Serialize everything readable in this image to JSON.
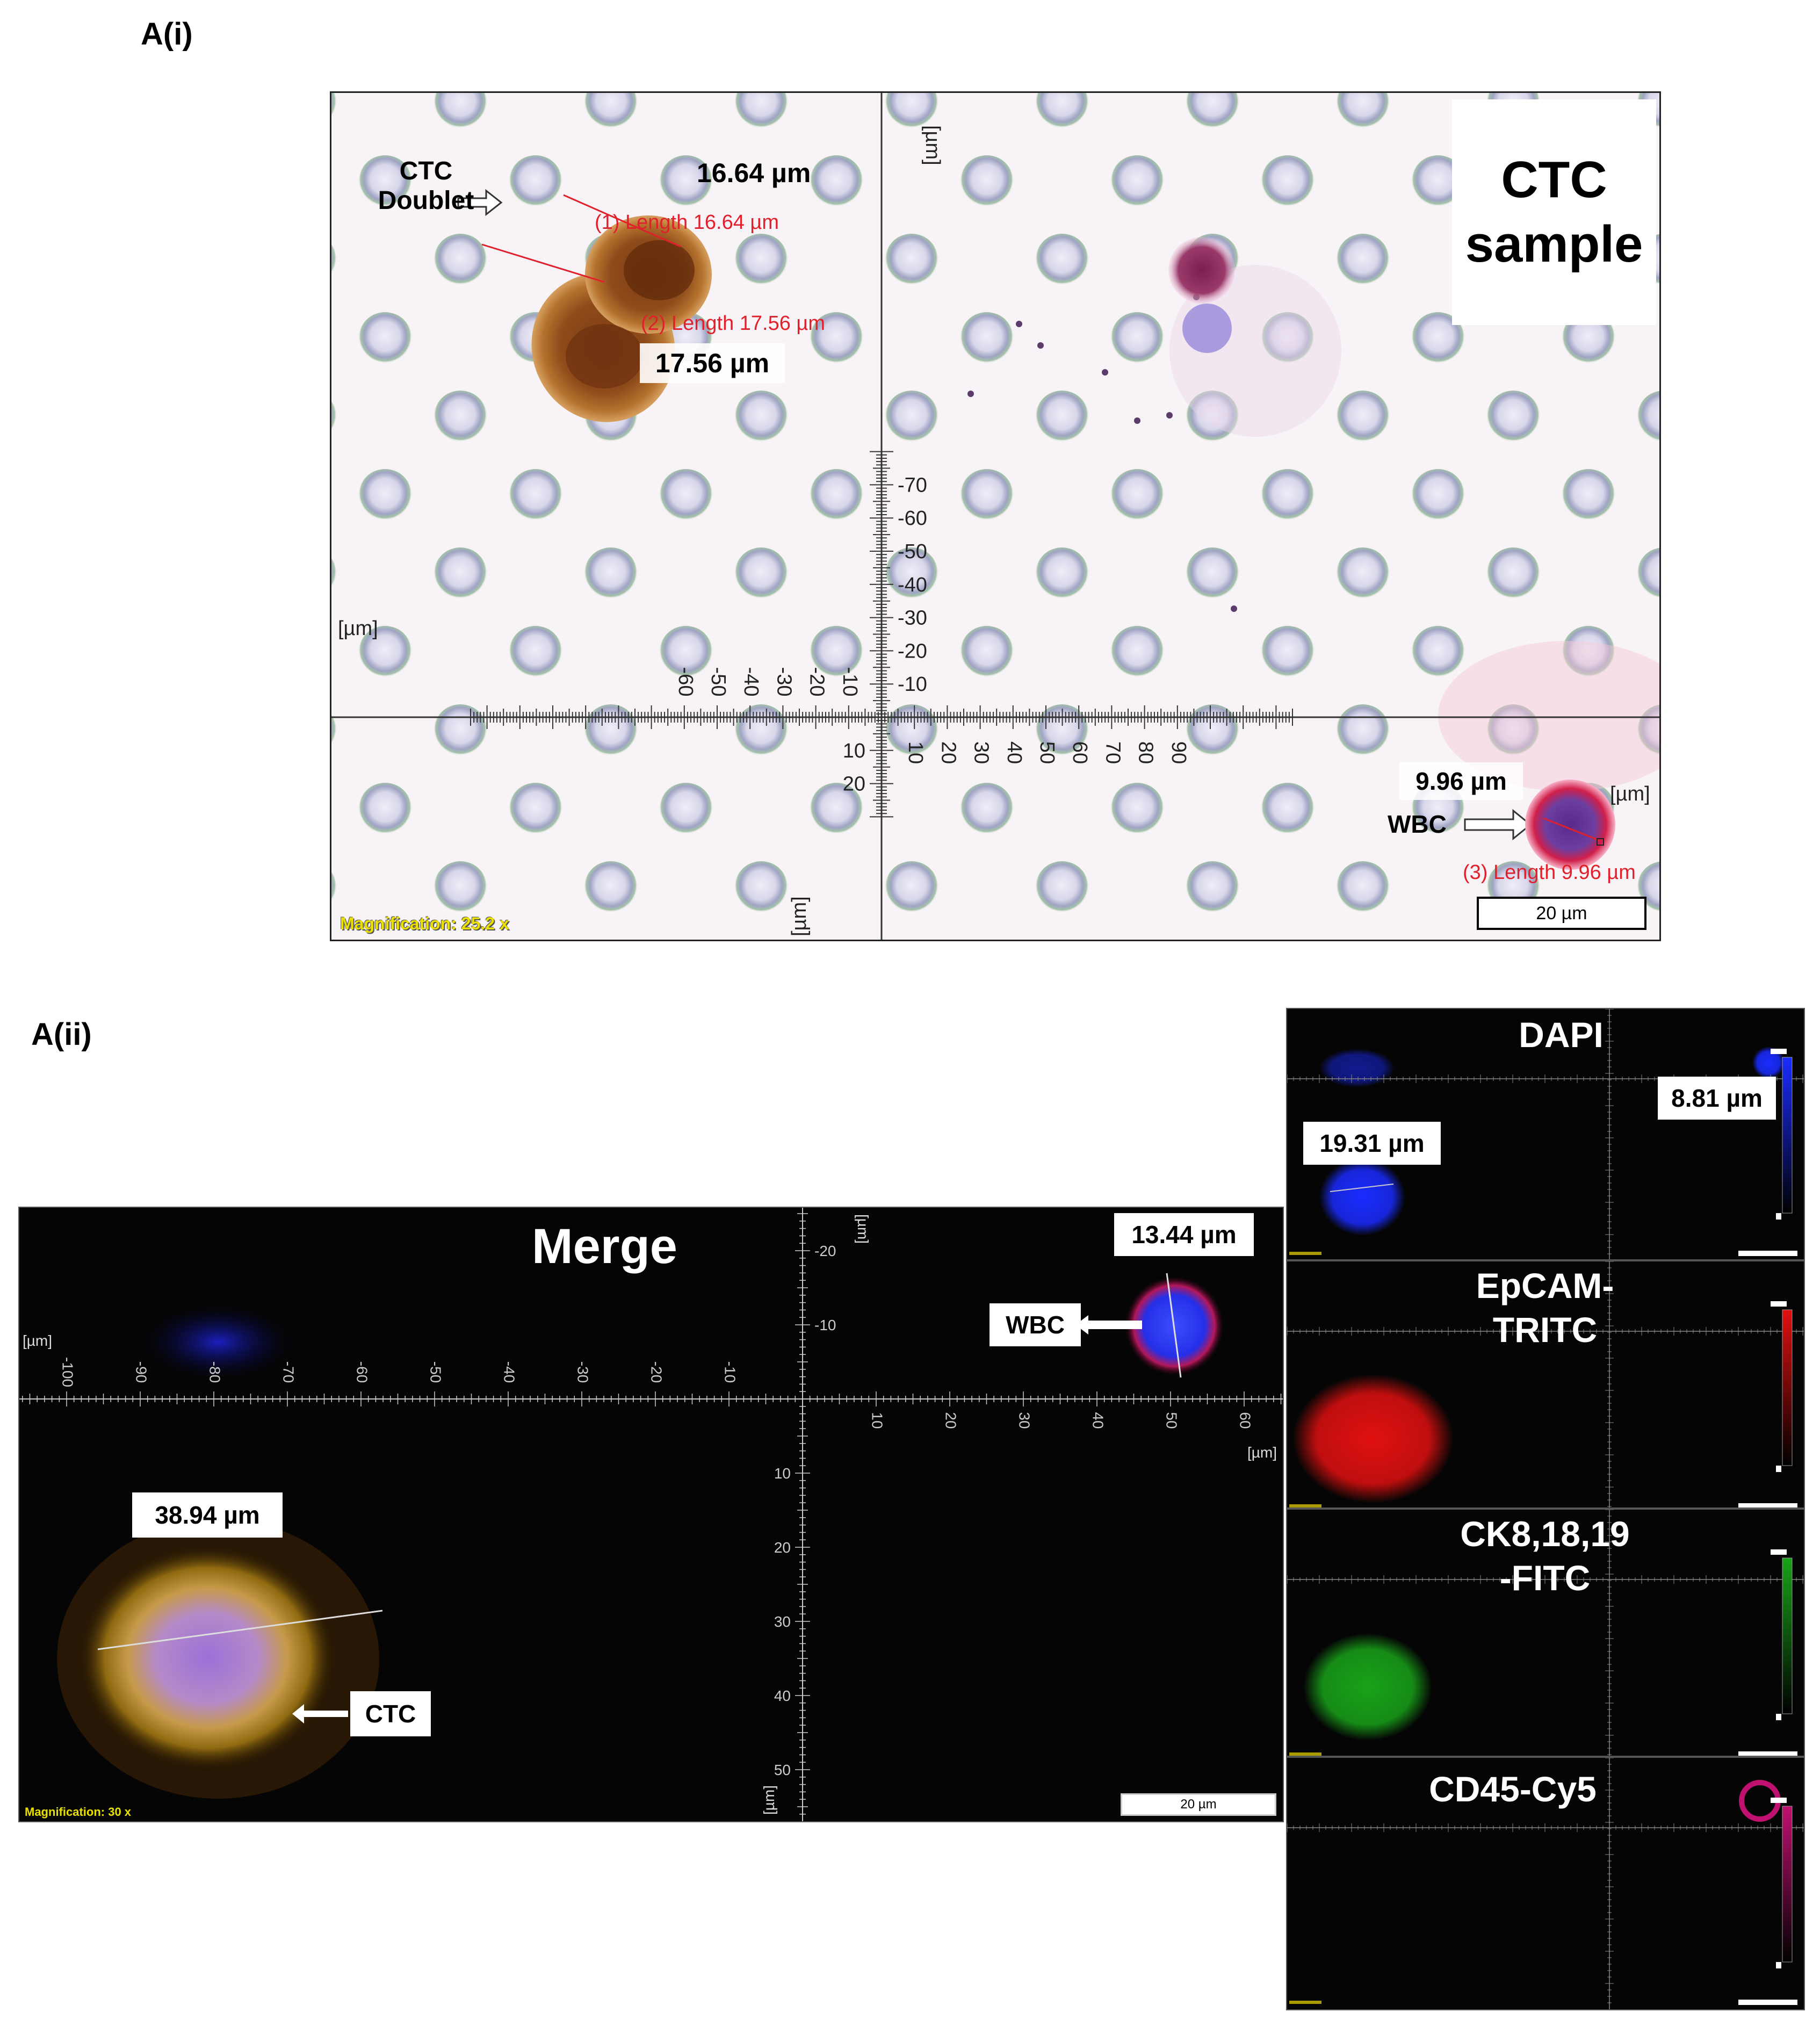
{
  "panel_ai": {
    "label": "A(i)",
    "title_line1": "CTC",
    "title_line2": "sample",
    "doublet_label_line1": "CTC",
    "doublet_label_line2": "Doublet",
    "meas1_black": "16.64 µm",
    "meas1_red": "(1) Length 16.64 µm",
    "meas2_red": "(2) Length 17.56 µm",
    "meas2_black": "17.56 µm",
    "wbc_meas_black": "9.96 µm",
    "wbc_label": "WBC",
    "meas3_red": "(3) Length 9.96 µm",
    "unit": "[µm]",
    "scalebar": "20 µm",
    "magnification_label": "Magnification:",
    "magnification_value": "25.2 x",
    "x_ticks": [
      "-60",
      "-50",
      "-40",
      "-30",
      "-20",
      "-10",
      "10",
      "20",
      "30",
      "40",
      "50",
      "60",
      "70",
      "80",
      "90"
    ],
    "y_ticks": [
      "-70",
      "-60",
      "-50",
      "-40",
      "-30",
      "-20",
      "-10",
      "10",
      "20"
    ]
  },
  "panel_aii": {
    "label": "A(ii)",
    "merge_title": "Merge",
    "meas_wbc": "13.44 µm",
    "wbc_label": "WBC",
    "meas_ctc": "38.94 µm",
    "ctc_label": "CTC",
    "unit": "[µm]",
    "scalebar": "20 µm",
    "magnification": "Magnification:   30 x",
    "x_ticks": [
      "-100",
      "-90",
      "-80",
      "-70",
      "-60",
      "-50",
      "-40",
      "-30",
      "-20",
      "-10",
      "10",
      "20",
      "30",
      "40",
      "50",
      "60"
    ],
    "y_ticks": [
      "-20",
      "-10",
      "10",
      "20",
      "30",
      "40",
      "50"
    ]
  },
  "channels": [
    {
      "title_line1": "DAPI",
      "title_line2": "",
      "meas_a": "19.31 µm",
      "meas_b": "8.81 µm",
      "color": "#1a2cff"
    },
    {
      "title_line1": "EpCAM-",
      "title_line2": "TRITC",
      "meas_a": "",
      "meas_b": "",
      "color": "#e01010"
    },
    {
      "title_line1": "CK8,18,19",
      "title_line2": "-FITC",
      "meas_a": "",
      "meas_b": "",
      "color": "#19a319"
    },
    {
      "title_line1": "CD45-Cy5",
      "title_line2": "",
      "meas_a": "",
      "meas_b": "",
      "color": "#c01070"
    }
  ]
}
